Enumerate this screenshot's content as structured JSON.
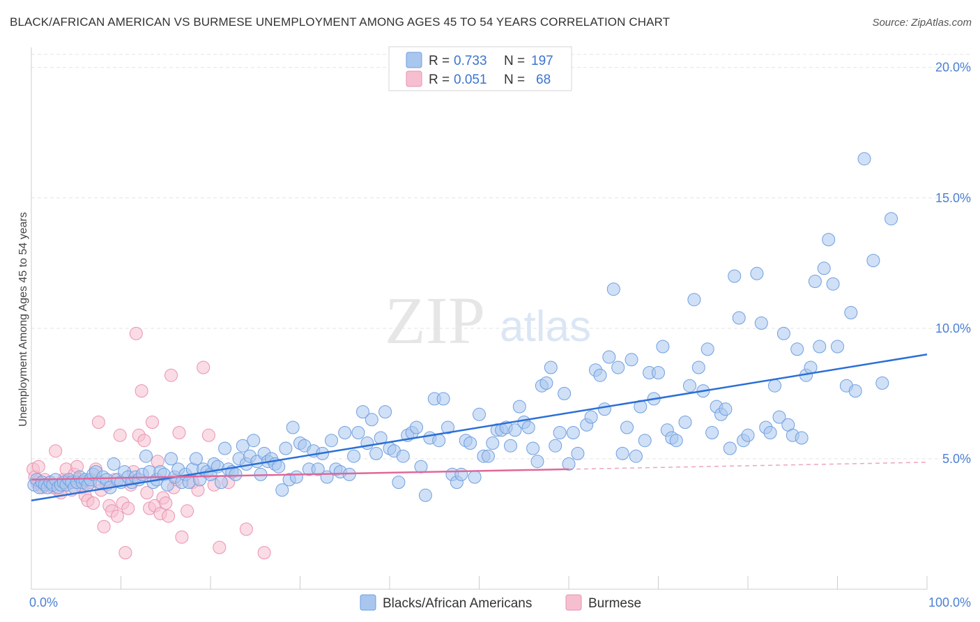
{
  "header": {
    "title": "BLACK/AFRICAN AMERICAN VS BURMESE UNEMPLOYMENT AMONG AGES 45 TO 54 YEARS CORRELATION CHART",
    "source": "Source: ZipAtlas.com"
  },
  "watermark": {
    "zip": "ZIP",
    "atlas": "atlas"
  },
  "colors": {
    "blue_fill": "#a9c6ef",
    "blue_stroke": "#6f9fe0",
    "blue_line": "#2a6fd6",
    "pink_fill": "#f6bfd0",
    "pink_stroke": "#ea92b0",
    "pink_line": "#e0679a",
    "axis_text": "#4a7fd4",
    "grid": "#e4e4e4"
  },
  "legend_top": {
    "rows": [
      {
        "r_label": "R =",
        "r_value": "0.733",
        "n_label": "N =",
        "n_value": "197",
        "color": "blue"
      },
      {
        "r_label": "R =",
        "r_value": "0.051",
        "n_label": "N =",
        "n_value": "68",
        "color": "pink"
      }
    ]
  },
  "chart_data": {
    "type": "scatter",
    "title": "BLACK/AFRICAN AMERICAN VS BURMESE UNEMPLOYMENT AMONG AGES 45 TO 54 YEARS CORRELATION CHART",
    "xlabel": "",
    "ylabel": "Unemployment Among Ages 45 to 54 years",
    "xlim": [
      0,
      100
    ],
    "ylim": [
      0,
      20.5
    ],
    "x_tick_labels": [
      "0.0%",
      "100.0%"
    ],
    "y_ticks": [
      5,
      10,
      15,
      20
    ],
    "y_tick_labels": [
      "5.0%",
      "10.0%",
      "15.0%",
      "20.0%"
    ],
    "grid": true,
    "legend_position": "bottom-center",
    "series": [
      {
        "name": "Blacks/African Americans",
        "color": "#a9c6ef",
        "trend": {
          "x": [
            0,
            100
          ],
          "y": [
            3.4,
            9.0
          ]
        },
        "points": [
          [
            0.3,
            4.0
          ],
          [
            0.6,
            4.2
          ],
          [
            0.9,
            3.9
          ],
          [
            1.2,
            4.1
          ],
          [
            1.5,
            4.0
          ],
          [
            1.8,
            3.9
          ],
          [
            2.1,
            4.1
          ],
          [
            2.4,
            4.0
          ],
          [
            2.7,
            4.2
          ],
          [
            3.0,
            3.9
          ],
          [
            3.3,
            4.0
          ],
          [
            3.6,
            4.1
          ],
          [
            3.9,
            4.0
          ],
          [
            4.2,
            4.2
          ],
          [
            4.5,
            4.1
          ],
          [
            4.8,
            3.9
          ],
          [
            5.1,
            4.1
          ],
          [
            5.4,
            4.3
          ],
          [
            5.7,
            4.1
          ],
          [
            6.0,
            4.2
          ],
          [
            6.3,
            4.0
          ],
          [
            6.6,
            4.2
          ],
          [
            6.9,
            4.4
          ],
          [
            7.2,
            4.5
          ],
          [
            7.6,
            4.1
          ],
          [
            8.0,
            4.3
          ],
          [
            8.4,
            4.2
          ],
          [
            8.8,
            3.9
          ],
          [
            9.2,
            4.8
          ],
          [
            9.6,
            4.2
          ],
          [
            10.0,
            4.1
          ],
          [
            10.4,
            4.5
          ],
          [
            10.8,
            4.3
          ],
          [
            11.2,
            4.1
          ],
          [
            11.6,
            4.3
          ],
          [
            12.0,
            4.2
          ],
          [
            12.4,
            4.4
          ],
          [
            12.8,
            5.1
          ],
          [
            13.2,
            4.5
          ],
          [
            13.6,
            4.1
          ],
          [
            14.0,
            4.2
          ],
          [
            14.4,
            4.5
          ],
          [
            14.8,
            4.4
          ],
          [
            15.2,
            4.0
          ],
          [
            15.6,
            5.0
          ],
          [
            16.0,
            4.3
          ],
          [
            16.4,
            4.6
          ],
          [
            16.8,
            4.1
          ],
          [
            17.2,
            4.4
          ],
          [
            17.6,
            4.1
          ],
          [
            18.0,
            4.6
          ],
          [
            18.4,
            5.0
          ],
          [
            18.8,
            4.2
          ],
          [
            19.2,
            4.6
          ],
          [
            19.6,
            4.5
          ],
          [
            20.0,
            4.4
          ],
          [
            20.4,
            4.8
          ],
          [
            20.8,
            4.7
          ],
          [
            21.2,
            4.1
          ],
          [
            21.6,
            5.4
          ],
          [
            22.0,
            4.6
          ],
          [
            22.4,
            4.5
          ],
          [
            22.8,
            4.4
          ],
          [
            23.2,
            5.0
          ],
          [
            23.6,
            5.5
          ],
          [
            24.0,
            4.8
          ],
          [
            24.4,
            5.1
          ],
          [
            24.8,
            5.7
          ],
          [
            25.2,
            4.9
          ],
          [
            25.6,
            4.4
          ],
          [
            26.0,
            5.2
          ],
          [
            26.4,
            4.9
          ],
          [
            26.8,
            5.0
          ],
          [
            27.2,
            4.8
          ],
          [
            27.6,
            4.7
          ],
          [
            28.0,
            3.8
          ],
          [
            28.4,
            5.4
          ],
          [
            28.8,
            4.2
          ],
          [
            29.2,
            6.2
          ],
          [
            29.6,
            4.3
          ],
          [
            30.0,
            5.6
          ],
          [
            30.5,
            5.5
          ],
          [
            31.0,
            4.6
          ],
          [
            31.5,
            5.3
          ],
          [
            32.0,
            4.6
          ],
          [
            32.5,
            5.2
          ],
          [
            33.0,
            4.3
          ],
          [
            33.5,
            5.7
          ],
          [
            34.0,
            4.6
          ],
          [
            34.5,
            4.5
          ],
          [
            35.0,
            6.0
          ],
          [
            35.5,
            4.4
          ],
          [
            36.0,
            5.1
          ],
          [
            36.5,
            6.0
          ],
          [
            37.0,
            6.8
          ],
          [
            37.5,
            5.6
          ],
          [
            38.0,
            6.5
          ],
          [
            38.5,
            5.2
          ],
          [
            39.0,
            5.8
          ],
          [
            39.5,
            6.8
          ],
          [
            40.0,
            5.4
          ],
          [
            40.5,
            5.3
          ],
          [
            41.0,
            4.1
          ],
          [
            41.5,
            5.1
          ],
          [
            42.0,
            5.9
          ],
          [
            42.5,
            6.0
          ],
          [
            43.0,
            6.2
          ],
          [
            43.5,
            4.7
          ],
          [
            44.0,
            3.6
          ],
          [
            44.5,
            5.8
          ],
          [
            45.0,
            7.3
          ],
          [
            45.5,
            5.7
          ],
          [
            46.0,
            7.3
          ],
          [
            46.5,
            6.2
          ],
          [
            47.0,
            4.4
          ],
          [
            47.5,
            4.1
          ],
          [
            48.0,
            4.4
          ],
          [
            48.5,
            5.7
          ],
          [
            49.0,
            5.6
          ],
          [
            49.5,
            4.3
          ],
          [
            50.0,
            6.7
          ],
          [
            50.5,
            5.1
          ],
          [
            51.0,
            5.1
          ],
          [
            51.5,
            5.6
          ],
          [
            52.0,
            6.1
          ],
          [
            52.5,
            6.1
          ],
          [
            53.0,
            6.2
          ],
          [
            53.5,
            5.5
          ],
          [
            54.0,
            6.1
          ],
          [
            54.5,
            7.0
          ],
          [
            55.0,
            6.4
          ],
          [
            55.5,
            6.2
          ],
          [
            56.0,
            5.4
          ],
          [
            56.5,
            4.9
          ],
          [
            57.0,
            7.8
          ],
          [
            57.5,
            7.9
          ],
          [
            58.0,
            8.5
          ],
          [
            58.5,
            5.5
          ],
          [
            59.0,
            6.0
          ],
          [
            59.5,
            7.5
          ],
          [
            60.0,
            4.8
          ],
          [
            60.5,
            6.0
          ],
          [
            61.0,
            5.2
          ],
          [
            62.0,
            6.3
          ],
          [
            62.5,
            6.6
          ],
          [
            63.0,
            8.4
          ],
          [
            63.5,
            8.2
          ],
          [
            64.0,
            6.9
          ],
          [
            64.5,
            8.9
          ],
          [
            65.0,
            11.5
          ],
          [
            65.5,
            8.5
          ],
          [
            66.0,
            5.2
          ],
          [
            66.5,
            6.2
          ],
          [
            67.0,
            8.8
          ],
          [
            67.5,
            5.1
          ],
          [
            68.0,
            7.0
          ],
          [
            68.5,
            5.7
          ],
          [
            69.0,
            8.3
          ],
          [
            69.5,
            7.3
          ],
          [
            70.0,
            8.3
          ],
          [
            70.5,
            9.3
          ],
          [
            71.0,
            6.1
          ],
          [
            71.5,
            5.8
          ],
          [
            72.0,
            5.7
          ],
          [
            73.0,
            6.4
          ],
          [
            73.5,
            7.8
          ],
          [
            74.0,
            11.1
          ],
          [
            74.5,
            8.5
          ],
          [
            75.0,
            7.6
          ],
          [
            75.5,
            9.2
          ],
          [
            76.0,
            6.0
          ],
          [
            76.5,
            7.0
          ],
          [
            77.0,
            6.7
          ],
          [
            77.5,
            6.9
          ],
          [
            78.0,
            5.4
          ],
          [
            78.5,
            12.0
          ],
          [
            79.0,
            10.4
          ],
          [
            79.5,
            5.7
          ],
          [
            80.0,
            5.9
          ],
          [
            81.0,
            12.1
          ],
          [
            81.5,
            10.2
          ],
          [
            82.0,
            6.2
          ],
          [
            82.5,
            6.0
          ],
          [
            83.0,
            7.8
          ],
          [
            83.5,
            6.6
          ],
          [
            84.0,
            9.8
          ],
          [
            84.5,
            6.3
          ],
          [
            85.0,
            5.9
          ],
          [
            85.5,
            9.2
          ],
          [
            86.0,
            5.8
          ],
          [
            86.5,
            8.2
          ],
          [
            87.0,
            8.5
          ],
          [
            87.5,
            11.8
          ],
          [
            88.0,
            9.3
          ],
          [
            88.5,
            12.3
          ],
          [
            89.0,
            13.4
          ],
          [
            89.5,
            11.7
          ],
          [
            90.0,
            9.3
          ],
          [
            91.0,
            7.8
          ],
          [
            91.5,
            10.6
          ],
          [
            92.0,
            7.6
          ],
          [
            93.0,
            16.5
          ],
          [
            94.0,
            12.6
          ],
          [
            95.0,
            7.9
          ],
          [
            96.0,
            14.2
          ]
        ]
      },
      {
        "name": "Burmese",
        "color": "#f6bfd0",
        "trend": {
          "x": [
            0,
            60
          ],
          "y": [
            4.2,
            4.6
          ]
        },
        "points": [
          [
            0.2,
            4.6
          ],
          [
            0.4,
            4.3
          ],
          [
            0.6,
            4.1
          ],
          [
            0.8,
            4.7
          ],
          [
            1.0,
            4.0
          ],
          [
            1.2,
            3.9
          ],
          [
            1.5,
            4.2
          ],
          [
            1.8,
            4.0
          ],
          [
            2.1,
            4.1
          ],
          [
            2.4,
            3.9
          ],
          [
            2.7,
            5.3
          ],
          [
            3.0,
            3.8
          ],
          [
            3.3,
            3.7
          ],
          [
            3.6,
            4.2
          ],
          [
            3.9,
            4.6
          ],
          [
            4.2,
            4.1
          ],
          [
            4.5,
            3.8
          ],
          [
            4.8,
            4.4
          ],
          [
            5.1,
            4.7
          ],
          [
            5.4,
            4.2
          ],
          [
            5.7,
            3.9
          ],
          [
            6.0,
            3.6
          ],
          [
            6.3,
            3.4
          ],
          [
            6.6,
            4.1
          ],
          [
            6.9,
            3.3
          ],
          [
            7.2,
            4.6
          ],
          [
            7.5,
            6.4
          ],
          [
            7.8,
            3.8
          ],
          [
            8.1,
            2.4
          ],
          [
            8.4,
            4.0
          ],
          [
            8.7,
            3.2
          ],
          [
            9.0,
            3.0
          ],
          [
            9.3,
            4.2
          ],
          [
            9.6,
            2.8
          ],
          [
            9.9,
            5.9
          ],
          [
            10.2,
            3.3
          ],
          [
            10.5,
            1.4
          ],
          [
            10.8,
            3.1
          ],
          [
            11.1,
            4.0
          ],
          [
            11.4,
            4.5
          ],
          [
            11.7,
            9.8
          ],
          [
            12.0,
            5.9
          ],
          [
            12.3,
            7.6
          ],
          [
            12.6,
            5.7
          ],
          [
            12.9,
            3.7
          ],
          [
            13.2,
            3.1
          ],
          [
            13.5,
            6.4
          ],
          [
            13.8,
            3.2
          ],
          [
            14.1,
            4.9
          ],
          [
            14.4,
            2.9
          ],
          [
            14.7,
            3.5
          ],
          [
            15.0,
            3.3
          ],
          [
            15.3,
            2.8
          ],
          [
            15.6,
            8.2
          ],
          [
            15.9,
            3.9
          ],
          [
            16.2,
            4.2
          ],
          [
            16.5,
            6.0
          ],
          [
            16.8,
            2.0
          ],
          [
            17.4,
            3.0
          ],
          [
            18.0,
            4.1
          ],
          [
            18.6,
            3.8
          ],
          [
            19.2,
            8.5
          ],
          [
            19.8,
            5.9
          ],
          [
            20.4,
            4.0
          ],
          [
            21.0,
            1.6
          ],
          [
            22.0,
            4.1
          ],
          [
            24.0,
            2.3
          ],
          [
            26.0,
            1.4
          ]
        ]
      }
    ]
  },
  "legend_bottom": {
    "items": [
      {
        "label": "Blacks/African Americans",
        "color": "blue"
      },
      {
        "label": "Burmese",
        "color": "pink"
      }
    ]
  }
}
